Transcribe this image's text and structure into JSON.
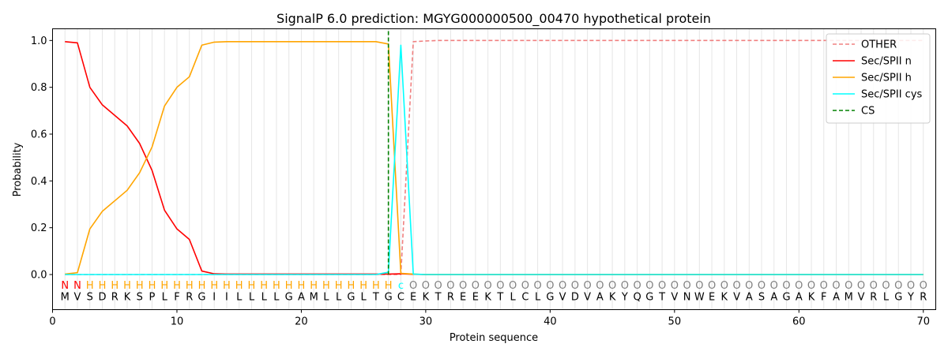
{
  "chart_data": {
    "type": "line",
    "title": "SignalP 6.0 prediction: MGYG000000500_00470 hypothetical protein",
    "xlabel": "Protein sequence",
    "ylabel": "Probability",
    "xlim": [
      0,
      71
    ],
    "ylim": [
      -0.15,
      1.05
    ],
    "xticks": [
      0,
      10,
      20,
      30,
      40,
      50,
      60,
      70
    ],
    "yticks": [
      "0.0",
      "0.2",
      "0.4",
      "0.6",
      "0.8",
      "1.0"
    ],
    "legend_position": "top-right",
    "sequence": [
      "M",
      "V",
      "S",
      "D",
      "R",
      "K",
      "S",
      "P",
      "L",
      "F",
      "R",
      "G",
      "I",
      "I",
      "L",
      "L",
      "L",
      "L",
      "G",
      "A",
      "M",
      "L",
      "L",
      "G",
      "L",
      "T",
      "G",
      "C",
      "E",
      "K",
      "T",
      "R",
      "E",
      "E",
      "K",
      "T",
      "L",
      "C",
      "L",
      "G",
      "V",
      "D",
      "V",
      "A",
      "K",
      "Y",
      "Q",
      "G",
      "T",
      "V",
      "N",
      "W",
      "E",
      "K",
      "V",
      "A",
      "S",
      "A",
      "G",
      "A",
      "K",
      "F",
      "A",
      "M",
      "V",
      "R",
      "L",
      "G",
      "Y",
      "R"
    ],
    "labels": [
      "N",
      "N",
      "H",
      "H",
      "H",
      "H",
      "H",
      "H",
      "H",
      "H",
      "H",
      "H",
      "H",
      "H",
      "H",
      "H",
      "H",
      "H",
      "H",
      "H",
      "H",
      "H",
      "H",
      "H",
      "H",
      "H",
      "H",
      "C",
      "O",
      "O",
      "O",
      "O",
      "O",
      "O",
      "O",
      "O",
      "O",
      "O",
      "O",
      "O",
      "O",
      "O",
      "O",
      "O",
      "O",
      "O",
      "O",
      "O",
      "O",
      "O",
      "O",
      "O",
      "O",
      "O",
      "O",
      "O",
      "O",
      "O",
      "O",
      "O",
      "O",
      "O",
      "O",
      "O",
      "O",
      "O",
      "O",
      "O",
      "O",
      "O"
    ],
    "label_colors": {
      "N": "#ff0000",
      "H": "#ffa500",
      "C": "#00ffff",
      "O": "#808080"
    },
    "series": [
      {
        "name": "OTHER",
        "color": "#f08080",
        "dash": true,
        "values": [
          0,
          0,
          0,
          0,
          0,
          0,
          0,
          0,
          0,
          0,
          0,
          0,
          0,
          0,
          0,
          0,
          0,
          0,
          0,
          0,
          0,
          0,
          0,
          0,
          0,
          0,
          0,
          0,
          0.995,
          0.998,
          1,
          1,
          1,
          1,
          1,
          1,
          1,
          1,
          1,
          1,
          1,
          1,
          1,
          1,
          1,
          1,
          1,
          1,
          1,
          1,
          1,
          1,
          1,
          1,
          1,
          1,
          1,
          1,
          1,
          1,
          1,
          1,
          1,
          1,
          1,
          1,
          1,
          1,
          1,
          1
        ]
      },
      {
        "name": "Sec/SPII n",
        "color": "#ff0000",
        "dash": false,
        "values": [
          0.995,
          0.99,
          0.8,
          0.725,
          0.68,
          0.635,
          0.56,
          0.445,
          0.275,
          0.195,
          0.15,
          0.015,
          0.003,
          0.002,
          0.002,
          0.002,
          0.002,
          0.002,
          0.002,
          0.002,
          0.002,
          0.002,
          0.002,
          0.002,
          0.002,
          0.002,
          0.002,
          0.003,
          0.001,
          0,
          0,
          0,
          0,
          0,
          0,
          0,
          0,
          0,
          0,
          0,
          0,
          0,
          0,
          0,
          0,
          0,
          0,
          0,
          0,
          0,
          0,
          0,
          0,
          0,
          0,
          0,
          0,
          0,
          0,
          0,
          0,
          0,
          0,
          0,
          0,
          0,
          0,
          0,
          0,
          0
        ]
      },
      {
        "name": "Sec/SPII h",
        "color": "#ffa500",
        "dash": false,
        "values": [
          0.002,
          0.008,
          0.195,
          0.27,
          0.315,
          0.36,
          0.435,
          0.545,
          0.72,
          0.8,
          0.845,
          0.98,
          0.993,
          0.995,
          0.995,
          0.995,
          0.995,
          0.995,
          0.995,
          0.995,
          0.995,
          0.995,
          0.995,
          0.995,
          0.995,
          0.995,
          0.985,
          0.005,
          0.002,
          0,
          0,
          0,
          0,
          0,
          0,
          0,
          0,
          0,
          0,
          0,
          0,
          0,
          0,
          0,
          0,
          0,
          0,
          0,
          0,
          0,
          0,
          0,
          0,
          0,
          0,
          0,
          0,
          0,
          0,
          0,
          0,
          0,
          0,
          0,
          0,
          0,
          0,
          0,
          0,
          0
        ]
      },
      {
        "name": "Sec/SPII cys",
        "color": "#00ffff",
        "dash": false,
        "values": [
          0,
          0,
          0,
          0,
          0,
          0,
          0,
          0,
          0,
          0,
          0,
          0,
          0,
          0,
          0,
          0,
          0,
          0,
          0,
          0,
          0,
          0,
          0,
          0,
          0,
          0,
          0.01,
          0.98,
          0.002,
          0,
          0,
          0,
          0,
          0,
          0,
          0,
          0,
          0,
          0,
          0,
          0,
          0,
          0,
          0,
          0,
          0,
          0,
          0,
          0,
          0,
          0,
          0,
          0,
          0,
          0,
          0,
          0,
          0,
          0,
          0,
          0,
          0,
          0,
          0,
          0,
          0,
          0,
          0,
          0,
          0
        ]
      },
      {
        "name": "CS",
        "color": "#008000",
        "dash": true,
        "type": "vline",
        "x": 27
      }
    ]
  }
}
